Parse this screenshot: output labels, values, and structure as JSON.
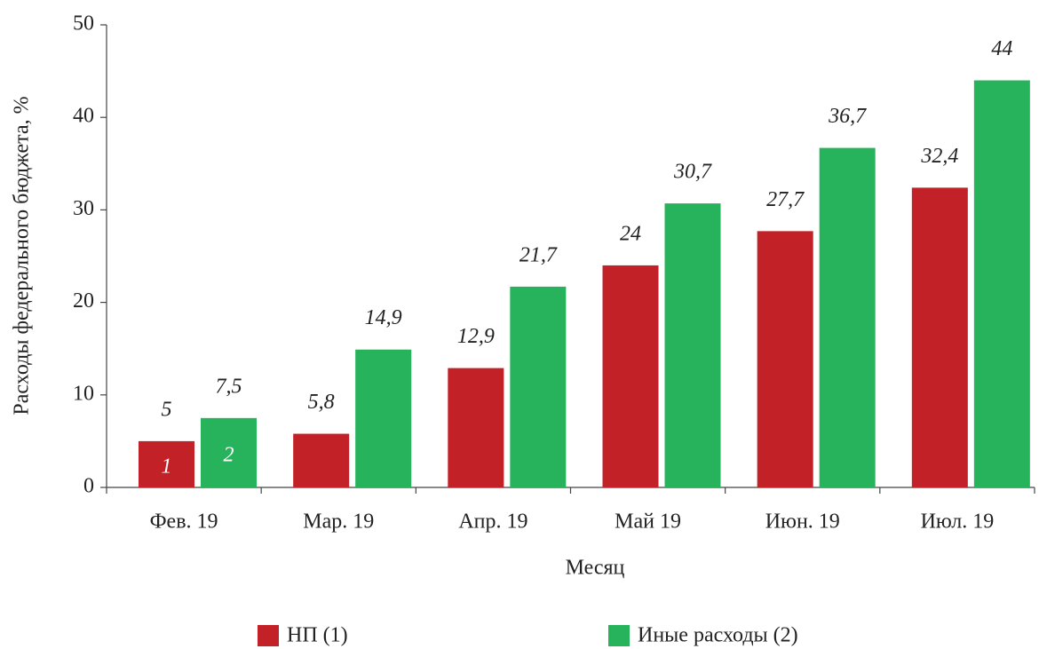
{
  "chart_data": {
    "type": "bar",
    "y_label": "Расходы федерального бюджета, %",
    "x_label": "Месяц",
    "categories": [
      "Фев. 19",
      "Мар. 19",
      "Апр. 19",
      "Май 19",
      "Июн. 19",
      "Июл. 19"
    ],
    "series": [
      {
        "name": "НП (1)",
        "bar_label": "1",
        "color": "#c22127",
        "values": [
          5,
          5.8,
          12.9,
          24,
          27.7,
          32.4
        ],
        "value_labels": [
          "5",
          "5,8",
          "12,9",
          "24",
          "27,7",
          "32,4"
        ]
      },
      {
        "name": "Иные расходы (2)",
        "bar_label": "2",
        "color": "#27b35b",
        "values": [
          7.5,
          14.9,
          21.7,
          30.7,
          36.7,
          44
        ],
        "value_labels": [
          "7,5",
          "14,9",
          "21,7",
          "30,7",
          "36,7",
          "44"
        ]
      }
    ],
    "ylim": [
      0,
      50
    ],
    "yticks": [
      0,
      10,
      20,
      30,
      40,
      50
    ],
    "grid": false
  }
}
